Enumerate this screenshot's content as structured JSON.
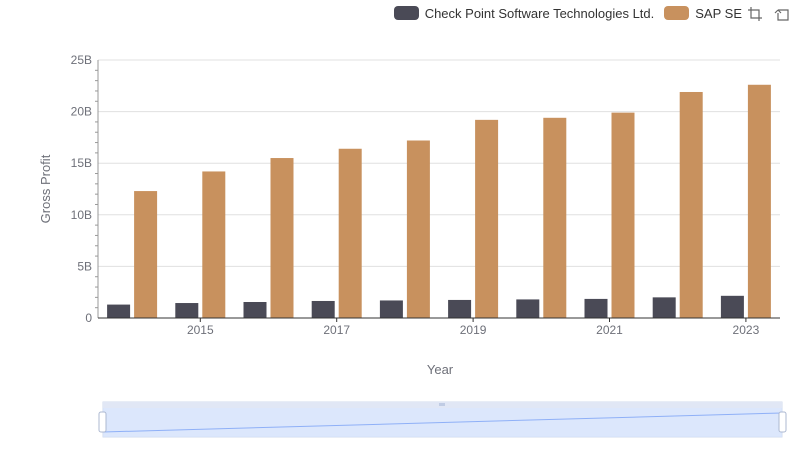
{
  "chart_data": {
    "type": "bar",
    "categories": [
      "2014",
      "2015",
      "2016",
      "2017",
      "2018",
      "2019",
      "2020",
      "2021",
      "2022",
      "2023"
    ],
    "x_tick_labels": [
      "2015",
      "2017",
      "2019",
      "2021",
      "2023"
    ],
    "y_tick_labels": [
      "0",
      "5B",
      "10B",
      "15B",
      "20B",
      "25B"
    ],
    "series": [
      {
        "name": "Check Point Software Technologies Ltd.",
        "color": "#4a4a56",
        "values": [
          1.3,
          1.45,
          1.55,
          1.65,
          1.7,
          1.75,
          1.8,
          1.85,
          2.0,
          2.15
        ]
      },
      {
        "name": "SAP SE",
        "color": "#c8915e",
        "values": [
          12.3,
          14.2,
          15.5,
          16.4,
          17.2,
          19.2,
          19.4,
          19.9,
          21.9,
          22.6
        ]
      }
    ],
    "xlabel": "Year",
    "ylabel": "Gross Profit",
    "ylim": [
      0,
      25
    ],
    "grid": true,
    "legend_position": "top-right"
  },
  "toolbox": {
    "zoom_icon": "zoom-icon",
    "restore_icon": "restore-icon"
  }
}
